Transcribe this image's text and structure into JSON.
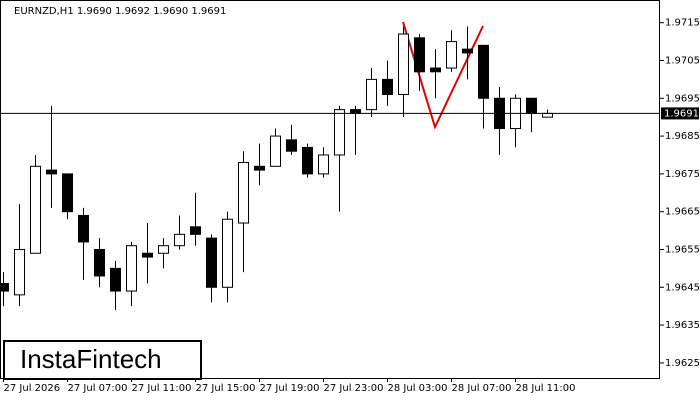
{
  "chart_data": {
    "type": "candlestick",
    "title": "EURNZD,H1  1.9690 1.9692 1.9690 1.9691",
    "watermark": "InstaFintech",
    "categories": [
      "27 Jul 2026",
      null,
      null,
      null,
      "27 Jul 07:00",
      null,
      null,
      null,
      "27 Jul 11:00",
      null,
      null,
      null,
      "27 Jul 15:00",
      null,
      null,
      null,
      "27 Jul 19:00",
      null,
      null,
      null,
      "27 Jul 23:00",
      null,
      null,
      null,
      "28 Jul 03:00",
      null,
      null,
      null,
      "28 Jul 07:00",
      null,
      null,
      null,
      "28 Jul 11:00",
      null,
      null
    ],
    "open": [
      1.9646,
      1.9643,
      1.9654,
      1.9676,
      1.9675,
      1.9664,
      1.9655,
      1.965,
      1.9644,
      1.9654,
      1.9654,
      1.9656,
      1.9661,
      1.9658,
      1.9645,
      1.9662,
      1.9677,
      1.9677,
      1.9684,
      1.9682,
      1.9675,
      1.968,
      1.9692,
      1.9692,
      1.97,
      1.9696,
      1.9711,
      1.9703,
      1.9703,
      1.9708,
      1.9709,
      1.9695,
      1.9687,
      1.9695,
      1.969
    ],
    "high": [
      1.9649,
      1.9667,
      1.968,
      1.9693,
      1.9675,
      1.9666,
      1.9658,
      1.9652,
      1.9657,
      1.9662,
      1.9658,
      1.9664,
      1.967,
      1.9659,
      1.9665,
      1.9681,
      1.9683,
      1.9687,
      1.9688,
      1.9683,
      1.9682,
      1.9693,
      1.9693,
      1.9703,
      1.9705,
      1.9714,
      1.9712,
      1.9708,
      1.9713,
      1.9714,
      1.9709,
      1.9698,
      1.9696,
      1.9695,
      1.9692
    ],
    "low": [
      1.964,
      1.964,
      1.9654,
      1.9666,
      1.9663,
      1.9647,
      1.9645,
      1.9639,
      1.964,
      1.9646,
      1.965,
      1.9655,
      1.9656,
      1.9641,
      1.9641,
      1.9649,
      1.9672,
      1.9677,
      1.968,
      1.9674,
      1.9674,
      1.9665,
      1.968,
      1.969,
      1.9693,
      1.969,
      1.9697,
      1.9695,
      1.9702,
      1.97,
      1.9687,
      1.968,
      1.9682,
      1.9686,
      1.969
    ],
    "close": [
      1.9644,
      1.9655,
      1.9677,
      1.9675,
      1.9665,
      1.9657,
      1.9648,
      1.9644,
      1.9656,
      1.9653,
      1.9656,
      1.9659,
      1.9659,
      1.9645,
      1.9663,
      1.9678,
      1.9676,
      1.9685,
      1.9681,
      1.9675,
      1.968,
      1.9692,
      1.9691,
      1.97,
      1.9696,
      1.9712,
      1.9702,
      1.9702,
      1.971,
      1.9707,
      1.9695,
      1.9687,
      1.9695,
      1.9691,
      1.9691
    ],
    "up_color": "#ffffff",
    "down_color": "#000000",
    "current_price": 1.9691,
    "ylim": [
      1.9621,
      1.9721
    ],
    "yticks": [
      1.9715,
      1.9705,
      1.9695,
      1.9685,
      1.9675,
      1.9665,
      1.9655,
      1.9645,
      1.9635,
      1.9625
    ]
  }
}
